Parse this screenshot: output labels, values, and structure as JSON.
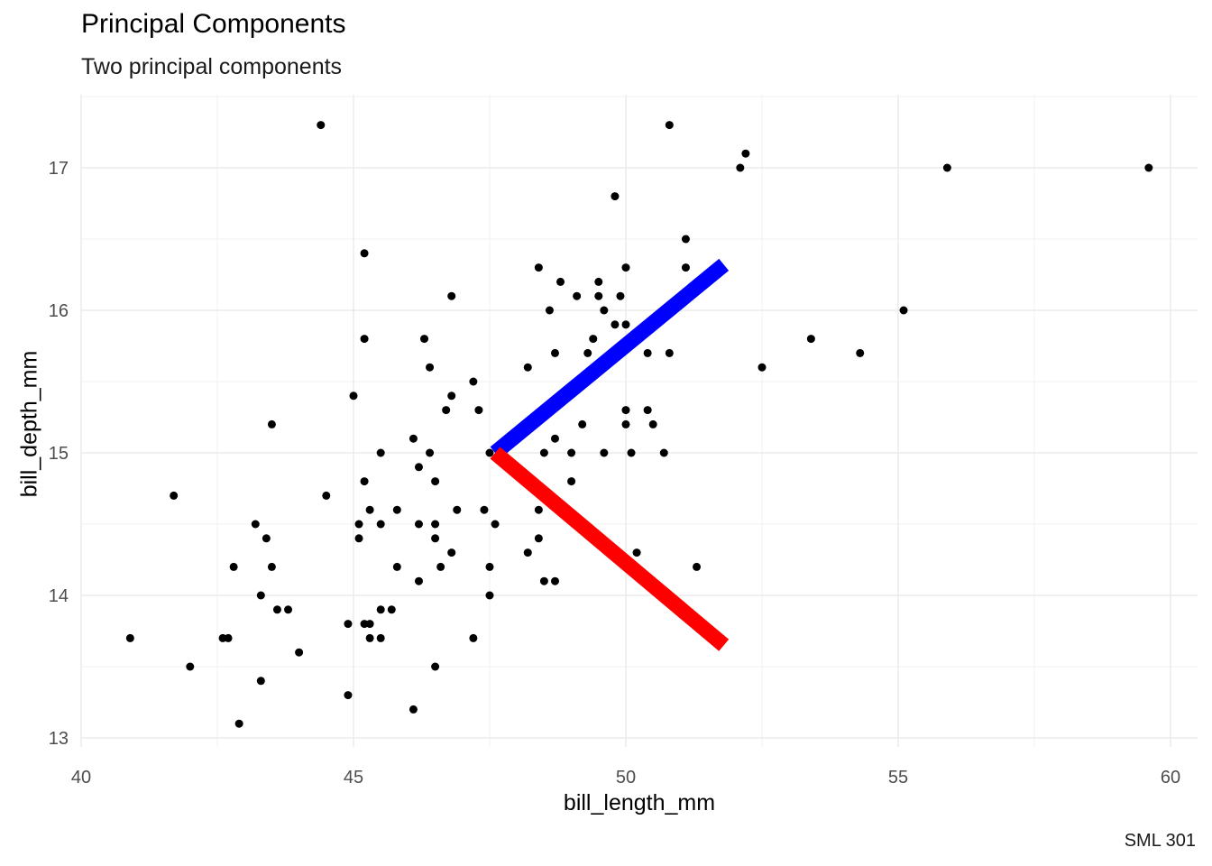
{
  "chart_data": {
    "type": "scatter",
    "title": "Principal Components",
    "subtitle": "Two principal components",
    "xlabel": "bill_length_mm",
    "ylabel": "bill_depth_mm",
    "caption": "SML 301",
    "xlim": [
      40,
      60.5
    ],
    "ylim": [
      13,
      17.5
    ],
    "x_ticks": [
      40,
      45,
      50,
      55,
      60
    ],
    "y_ticks": [
      13,
      14,
      15,
      16,
      17
    ],
    "grid": true,
    "points": [
      [
        44.4,
        17.3
      ],
      [
        50.8,
        17.3
      ],
      [
        55.9,
        17.0
      ],
      [
        59.6,
        17.0
      ],
      [
        52.1,
        17.0
      ],
      [
        52.2,
        17.1
      ],
      [
        49.8,
        16.8
      ],
      [
        51.1,
        16.5
      ],
      [
        45.2,
        16.4
      ],
      [
        48.4,
        16.3
      ],
      [
        50.0,
        16.3
      ],
      [
        51.1,
        16.3
      ],
      [
        48.8,
        16.2
      ],
      [
        49.5,
        16.2
      ],
      [
        46.8,
        16.1
      ],
      [
        49.1,
        16.1
      ],
      [
        49.5,
        16.1
      ],
      [
        49.9,
        16.1
      ],
      [
        48.6,
        16.0
      ],
      [
        49.6,
        16.0
      ],
      [
        55.1,
        16.0
      ],
      [
        49.8,
        15.9
      ],
      [
        50.0,
        15.9
      ],
      [
        45.2,
        15.8
      ],
      [
        46.3,
        15.8
      ],
      [
        49.4,
        15.8
      ],
      [
        53.4,
        15.8
      ],
      [
        48.7,
        15.7
      ],
      [
        49.3,
        15.7
      ],
      [
        50.4,
        15.7
      ],
      [
        50.8,
        15.7
      ],
      [
        54.3,
        15.7
      ],
      [
        46.4,
        15.6
      ],
      [
        48.2,
        15.6
      ],
      [
        52.5,
        15.6
      ],
      [
        47.2,
        15.5
      ],
      [
        45.0,
        15.4
      ],
      [
        46.8,
        15.4
      ],
      [
        46.7,
        15.3
      ],
      [
        47.3,
        15.3
      ],
      [
        50.0,
        15.3
      ],
      [
        50.4,
        15.3
      ],
      [
        43.5,
        15.2
      ],
      [
        49.2,
        15.2
      ],
      [
        50.0,
        15.2
      ],
      [
        50.5,
        15.2
      ],
      [
        46.1,
        15.1
      ],
      [
        48.7,
        15.1
      ],
      [
        45.5,
        15.0
      ],
      [
        46.4,
        15.0
      ],
      [
        47.5,
        15.0
      ],
      [
        48.5,
        15.0
      ],
      [
        49.0,
        15.0
      ],
      [
        49.6,
        15.0
      ],
      [
        50.1,
        15.0
      ],
      [
        50.7,
        15.0
      ],
      [
        46.2,
        14.9
      ],
      [
        45.2,
        14.8
      ],
      [
        46.5,
        14.8
      ],
      [
        49.0,
        14.8
      ],
      [
        44.5,
        14.7
      ],
      [
        41.7,
        14.7
      ],
      [
        45.3,
        14.6
      ],
      [
        45.8,
        14.6
      ],
      [
        46.9,
        14.6
      ],
      [
        47.4,
        14.6
      ],
      [
        48.4,
        14.6
      ],
      [
        43.2,
        14.5
      ],
      [
        45.1,
        14.5
      ],
      [
        45.5,
        14.5
      ],
      [
        46.2,
        14.5
      ],
      [
        46.5,
        14.5
      ],
      [
        47.6,
        14.5
      ],
      [
        43.4,
        14.4
      ],
      [
        45.1,
        14.4
      ],
      [
        46.5,
        14.4
      ],
      [
        48.4,
        14.4
      ],
      [
        46.8,
        14.3
      ],
      [
        48.2,
        14.3
      ],
      [
        50.2,
        14.3
      ],
      [
        42.8,
        14.2
      ],
      [
        43.5,
        14.2
      ],
      [
        45.8,
        14.2
      ],
      [
        46.6,
        14.2
      ],
      [
        47.5,
        14.2
      ],
      [
        51.3,
        14.2
      ],
      [
        46.2,
        14.1
      ],
      [
        48.5,
        14.1
      ],
      [
        48.7,
        14.1
      ],
      [
        43.3,
        14.0
      ],
      [
        47.5,
        14.0
      ],
      [
        43.6,
        13.9
      ],
      [
        43.8,
        13.9
      ],
      [
        45.5,
        13.9
      ],
      [
        45.7,
        13.9
      ],
      [
        44.9,
        13.8
      ],
      [
        45.2,
        13.8
      ],
      [
        45.3,
        13.8
      ],
      [
        40.9,
        13.7
      ],
      [
        42.6,
        13.7
      ],
      [
        42.7,
        13.7
      ],
      [
        45.3,
        13.7
      ],
      [
        45.5,
        13.7
      ],
      [
        47.2,
        13.7
      ],
      [
        44.0,
        13.6
      ],
      [
        42.0,
        13.5
      ],
      [
        46.5,
        13.5
      ],
      [
        43.3,
        13.4
      ],
      [
        44.9,
        13.3
      ],
      [
        46.1,
        13.2
      ],
      [
        42.9,
        13.1
      ]
    ],
    "segments": [
      {
        "color": "#0000ff",
        "x": [
          47.6,
          51.8
        ],
        "y": [
          15.0,
          16.32
        ]
      },
      {
        "color": "#ff0000",
        "x": [
          47.6,
          51.8
        ],
        "y": [
          15.0,
          13.65
        ]
      }
    ]
  }
}
